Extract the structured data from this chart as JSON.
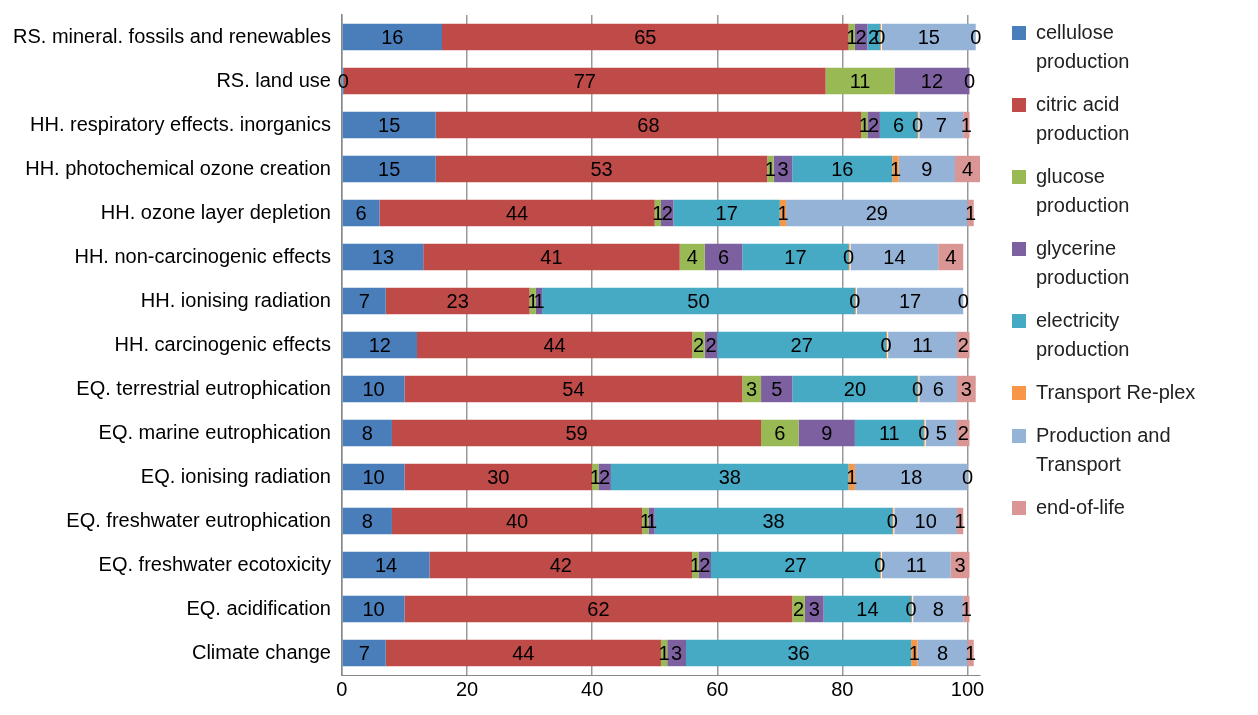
{
  "chart_data": {
    "type": "bar",
    "orientation": "horizontal",
    "stacked": true,
    "grid": "x",
    "legend": "right",
    "categories": [
      "RS. mineral. fossils and renewables",
      "RS. land use",
      "HH. respiratory effects. inorganics",
      "HH. photochemical ozone creation",
      "HH. ozone layer depletion",
      "HH. non-carcinogenic effects",
      "HH. ionising radiation",
      "HH. carcinogenic effects",
      "EQ. terrestrial eutrophication",
      "EQ. marine eutrophication",
      "EQ. ionising radiation",
      "EQ. freshwater eutrophication",
      "EQ. freshwater ecotoxicity",
      "EQ. acidification",
      "Climate change"
    ],
    "xlim": [
      0,
      102
    ],
    "xticks": [
      0,
      20,
      40,
      60,
      80,
      100
    ],
    "series": [
      {
        "name": "cellulose production",
        "color": "#4a7ebb",
        "values": [
          16,
          0,
          15,
          15,
          6,
          13,
          7,
          12,
          10,
          8,
          10,
          8,
          14,
          10,
          7
        ],
        "value_labels": [
          "16",
          "0",
          "15",
          "15",
          "6",
          "13",
          "7",
          "12",
          "10",
          "8",
          "10",
          "8",
          "14",
          "10",
          "7"
        ]
      },
      {
        "name": "citric acid production",
        "color": "#be4b48",
        "values": [
          65,
          77,
          68,
          53,
          44,
          41,
          23,
          44,
          54,
          59,
          30,
          40,
          42,
          62,
          44
        ],
        "value_labels": [
          "65",
          "77",
          "68",
          "53",
          "44",
          "41",
          "23",
          "44",
          "54",
          "59",
          "30",
          "40",
          "42",
          "62",
          "44"
        ]
      },
      {
        "name": "glucose production",
        "color": "#98b954",
        "values": [
          1,
          11,
          1,
          1,
          1,
          4,
          1,
          2,
          3,
          6,
          1,
          1,
          1,
          2,
          1
        ],
        "value_labels": [
          "1",
          "11",
          "1",
          "1",
          "1",
          "4",
          "1",
          "2",
          "3",
          "6",
          "1",
          "1",
          "1",
          "2",
          "1"
        ]
      },
      {
        "name": "glycerine production",
        "color": "#7d60a0",
        "values": [
          2,
          12,
          2,
          3,
          2,
          6,
          1,
          2,
          5,
          9,
          2,
          1,
          2,
          3,
          3
        ],
        "value_labels": [
          "2",
          "12",
          "2",
          "3",
          "2",
          "6",
          "1",
          "2",
          "5",
          "9",
          "2",
          "1",
          "2",
          "3",
          "3"
        ]
      },
      {
        "name": "electricity production",
        "color": "#46aac5",
        "values": [
          2,
          0,
          6,
          16,
          17,
          17,
          50,
          27,
          20,
          11,
          38,
          38,
          27,
          14,
          36
        ],
        "value_labels": [
          "2",
          null,
          "6",
          "16",
          "17",
          "17",
          "50",
          "27",
          "20",
          "11",
          "38",
          "38",
          "27",
          "14",
          "36"
        ]
      },
      {
        "name": "Transport Re-plex",
        "color": "#f79646",
        "values": [
          0,
          0,
          0,
          1,
          1,
          0,
          0,
          0,
          0,
          0,
          1,
          0,
          0,
          0,
          1
        ],
        "value_labels": [
          "0",
          null,
          "0",
          "1",
          "1",
          "0",
          "0",
          "0",
          "0",
          "0",
          "1",
          "0",
          "0",
          "0",
          "1"
        ]
      },
      {
        "name": "Production and Transport",
        "color": "#95b3d7",
        "values": [
          15,
          0,
          7,
          9,
          29,
          14,
          17,
          11,
          6,
          5,
          18,
          10,
          11,
          8,
          8
        ],
        "value_labels": [
          "15",
          null,
          "7",
          "9",
          "29",
          "14",
          "17",
          "11",
          "6",
          "5",
          "18",
          "10",
          "11",
          "8",
          "8"
        ]
      },
      {
        "name": "end-of-life",
        "color": "#d99694",
        "values": [
          0,
          0,
          1,
          4,
          1,
          4,
          0,
          2,
          3,
          2,
          0,
          1,
          3,
          1,
          1
        ],
        "value_labels": [
          "0",
          "0",
          "1",
          "4",
          "1",
          "4",
          "0",
          "2",
          "3",
          "2",
          "0",
          "1",
          "3",
          "1",
          "1"
        ]
      }
    ]
  }
}
